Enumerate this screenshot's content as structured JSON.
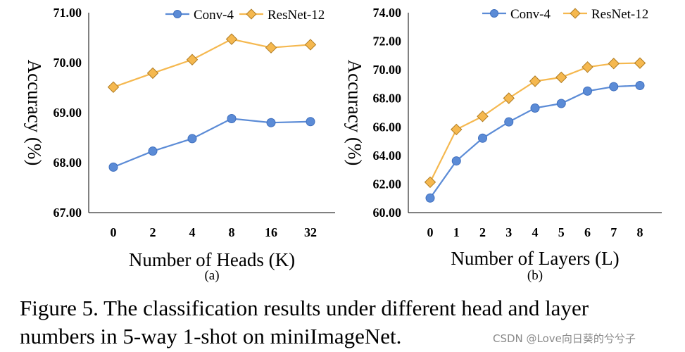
{
  "colors": {
    "conv4": "#5b8bd6",
    "conv4_edge": "#3f6fbe",
    "resnet12": "#f5b84f",
    "resnet12_edge": "#b07c22",
    "axis": "#000000"
  },
  "chart_data": [
    {
      "type": "line",
      "panel_label": "(a)",
      "xlabel": "Number of Heads (K)",
      "ylabel": "Accuracy (%)",
      "categories": [
        "0",
        "2",
        "4",
        "8",
        "16",
        "32"
      ],
      "yticks": [
        "67.00",
        "68.00",
        "69.00",
        "70.00",
        "71.00"
      ],
      "ylim": [
        67,
        71
      ],
      "grid": false,
      "legend": "top-right",
      "series": [
        {
          "name": "Conv-4",
          "marker": "circle",
          "values": [
            67.91,
            68.23,
            68.48,
            68.88,
            68.8,
            68.82
          ]
        },
        {
          "name": "ResNet-12",
          "marker": "diamond",
          "values": [
            69.51,
            69.79,
            70.06,
            70.47,
            70.3,
            70.36
          ]
        }
      ]
    },
    {
      "type": "line",
      "panel_label": "(b)",
      "xlabel": "Number of Layers (L)",
      "ylabel": "Accuracy (%)",
      "categories": [
        "0",
        "1",
        "2",
        "3",
        "4",
        "5",
        "6",
        "7",
        "8"
      ],
      "yticks": [
        "60.00",
        "62.00",
        "64.00",
        "66.00",
        "68.00",
        "70.00",
        "72.00",
        "74.00"
      ],
      "ylim": [
        60,
        74
      ],
      "grid": false,
      "legend": "top",
      "series": [
        {
          "name": "Conv-4",
          "marker": "circle",
          "values": [
            61.02,
            63.62,
            65.21,
            66.35,
            67.32,
            67.64,
            68.51,
            68.82,
            68.9
          ]
        },
        {
          "name": "ResNet-12",
          "marker": "diamond",
          "values": [
            62.13,
            65.82,
            66.74,
            68.01,
            69.2,
            69.47,
            70.19,
            70.44,
            70.47
          ]
        }
      ]
    }
  ],
  "caption": {
    "line1": "Figure 5. The classification results under different head and layer",
    "line2": "numbers in 5-way 1-shot on miniImageNet."
  },
  "watermark": "CSDN @Love向日葵的兮兮子"
}
